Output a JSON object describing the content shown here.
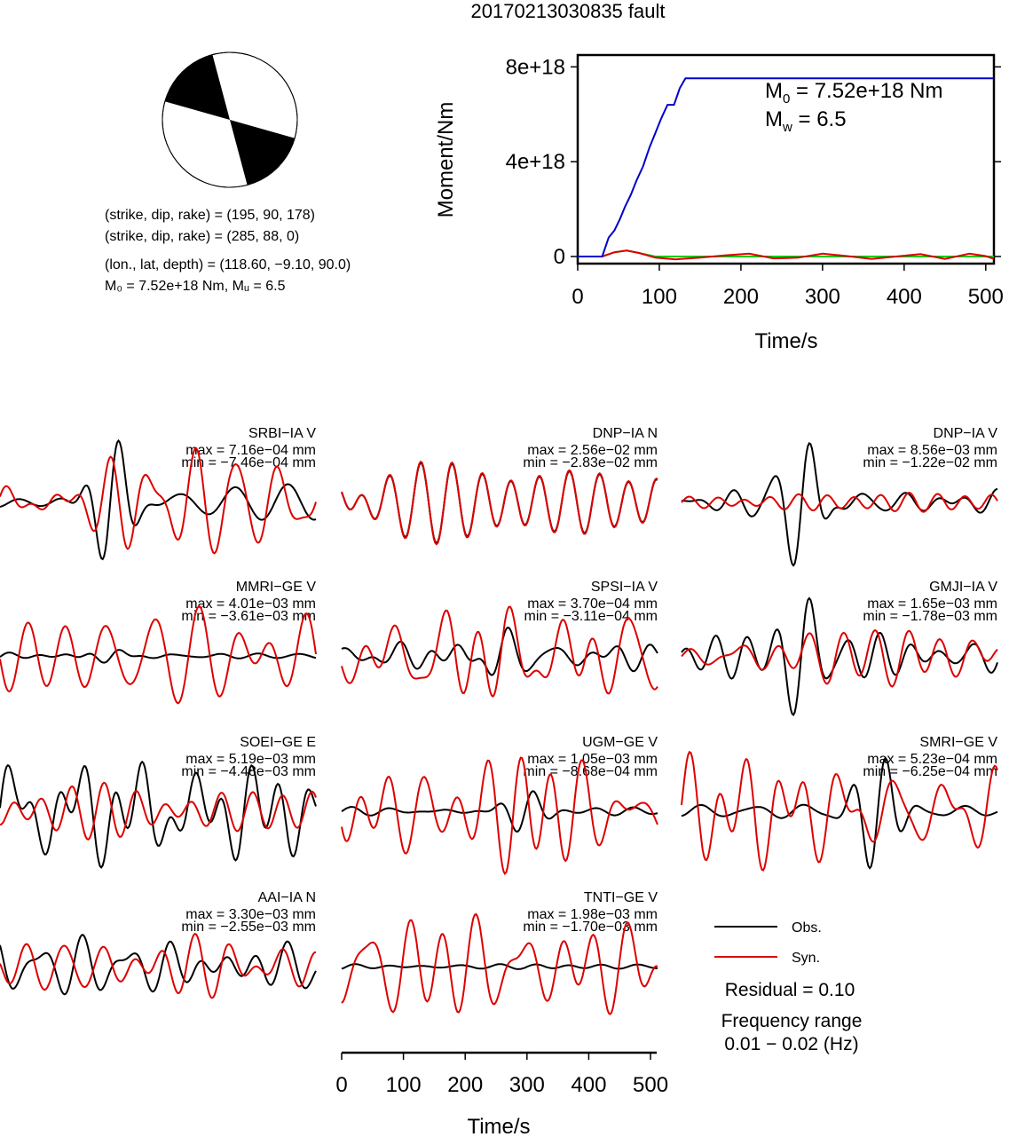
{
  "page": {
    "title": "20170213030835 fault"
  },
  "mechanism": {
    "lines": [
      "(strike, dip, rake) = (195, 90, 178)",
      "(strike, dip, rake) = (285, 88, 0)",
      "(lon., lat, depth) = (118.60, −9.10, 90.0)",
      "M₀ = 7.52e+18 Nm, Mᵤ = 6.5"
    ]
  },
  "colors": {
    "observed": "#000000",
    "synthetic": "#dd0000",
    "moment": "#0000cc",
    "aux_green": "#00cc00"
  },
  "chart_data": [
    {
      "type": "line",
      "name": "moment-rate-function",
      "ylabel": "Moment/Nm",
      "xlabel": "Time/s",
      "xlim": [
        0,
        510
      ],
      "ylim": [
        -3e+17,
        8.5e+18
      ],
      "x_ticks": [
        "0",
        "100",
        "200",
        "300",
        "400",
        "500"
      ],
      "y_ticks": [
        "0",
        "4e+18",
        "8e+18"
      ],
      "annotation_m0_prefix": "M",
      "annotation_m0_sub": "0",
      "annotation_m0_value": " = 7.52e+18 Nm",
      "annotation_mw_prefix": "M",
      "annotation_mw_sub": "w",
      "annotation_mw_value": " = 6.5",
      "series": [
        {
          "color": "blue",
          "x": [
            0,
            30,
            38,
            45,
            52,
            58,
            65,
            72,
            80,
            88,
            95,
            102,
            110,
            118,
            125,
            132,
            510
          ],
          "y": [
            0,
            0,
            8e+17,
            1.1e+18,
            1.6e+18,
            2.1e+18,
            2.6e+18,
            3.2e+18,
            3.8e+18,
            4.6e+18,
            5.2e+18,
            5.8e+18,
            6.4e+18,
            6.4e+18,
            7.1e+18,
            7.52e+18,
            7.52e+18
          ]
        },
        {
          "color": "green",
          "x": [
            0,
            30,
            45,
            60,
            75,
            95,
            130,
            510
          ],
          "y": [
            0,
            0,
            1.8e+17,
            2.5e+17,
            1.5e+17,
            0,
            0,
            0
          ]
        },
        {
          "color": "red",
          "x": [
            0,
            30,
            45,
            60,
            75,
            95,
            120,
            150,
            180,
            210,
            240,
            270,
            300,
            330,
            360,
            390,
            420,
            450,
            480,
            500,
            510
          ],
          "y": [
            0,
            0,
            1.8e+17,
            2.5e+17,
            1.5e+17,
            -5e+16,
            -1.2e+17,
            -5e+16,
            5e+16,
            1.2e+17,
            -8e+16,
            -5e+16,
            1.2e+17,
            2e+16,
            -1e+17,
            0.0,
            1e+17,
            -1e+17,
            1.2e+17,
            2e+16,
            -1e+17
          ]
        }
      ]
    },
    {
      "type": "line",
      "name": "waveform-comparison",
      "xlabel": "Time/s",
      "xlim": [
        0,
        510
      ],
      "x_ticks": [
        "0",
        "100",
        "200",
        "300",
        "400",
        "500"
      ],
      "legend": {
        "observed": "Obs.",
        "synthetic": "Syn.",
        "placement": "bottom-right"
      },
      "residual": "Residual = 0.10",
      "frequency_title": "Frequency range",
      "frequency_value": "0.01 − 0.02 (Hz)",
      "panels": [
        {
          "station": "SRBI−IA V",
          "max": "max = 7.16e−04 mm",
          "min": "min = −7.46e−04 mm",
          "obs": {
            "ampl": 0.25,
            "seed": 1.3,
            "burst": 0.35,
            "burstAmp": 0.85
          },
          "syn": {
            "ampl": 0.85,
            "seed": 2.1
          }
        },
        {
          "station": "DNP−IA N",
          "max": "max = 2.56e−02 mm",
          "min": "min = −2.83e−02 mm",
          "obs": {
            "ampl": 0.9,
            "seed": 3.0,
            "burst": -1,
            "burstAmp": 0
          },
          "syn": {
            "ampl": 0.9,
            "seed": 3.0,
            "same": true
          }
        },
        {
          "station": "DNP−IA V",
          "max": "max = 8.56e−03 mm",
          "min": "min = −1.22e−02 mm",
          "obs": {
            "ampl": 0.2,
            "seed": 4.4,
            "burst": 0.38,
            "burstAmp": 0.95
          },
          "syn": {
            "ampl": 0.22,
            "seed": 5.2
          }
        },
        {
          "station": "MMRI−GE V",
          "max": "max = 4.01e−03 mm",
          "min": "min = −3.61e−03 mm",
          "obs": {
            "ampl": 0.08,
            "seed": 6.1,
            "burst": 0.35,
            "burstAmp": 0.15
          },
          "syn": {
            "ampl": 0.9,
            "seed": 7.3
          }
        },
        {
          "station": "SPSI−IA V",
          "max": "max = 3.70e−04 mm",
          "min": "min = −3.11e−04 mm",
          "obs": {
            "ampl": 0.3,
            "seed": 8.2,
            "burst": 0.5,
            "burstAmp": 0.4
          },
          "syn": {
            "ampl": 0.85,
            "seed": 9.1
          }
        },
        {
          "station": "GMJI−IA V",
          "max": "max = 1.65e−03 mm",
          "min": "min = −1.78e−03 mm",
          "obs": {
            "ampl": 0.35,
            "seed": 10.4,
            "burst": 0.38,
            "burstAmp": 0.95
          },
          "syn": {
            "ampl": 0.5,
            "seed": 11.6
          }
        },
        {
          "station": "SOEI−GE E",
          "max": "max = 5.19e−03 mm",
          "min": "min = −4.48e−03 mm",
          "obs": {
            "ampl": 0.85,
            "seed": 12.2,
            "burst": -1,
            "burstAmp": 0
          },
          "syn": {
            "ampl": 0.6,
            "seed": 13.5
          }
        },
        {
          "station": "UGM−GE V",
          "max": "max = 1.05e−03 mm",
          "min": "min = −8.68e−04 mm",
          "obs": {
            "ampl": 0.06,
            "seed": 14.1,
            "burst": 0.58,
            "burstAmp": 0.3
          },
          "syn": {
            "ampl": 0.9,
            "seed": 15.7
          }
        },
        {
          "station": "SMRI−GE V",
          "max": "max = 5.23e−04 mm",
          "min": "min = −6.25e−04 mm",
          "obs": {
            "ampl": 0.1,
            "seed": 16.3,
            "burst": 0.62,
            "burstAmp": 0.9
          },
          "syn": {
            "ampl": 0.85,
            "seed": 17.8
          }
        },
        {
          "station": "AAI−IA N",
          "max": "max = 3.30e−03 mm",
          "min": "min = −2.55e−03 mm",
          "obs": {
            "ampl": 0.75,
            "seed": 18.4,
            "burst": -1,
            "burstAmp": 0
          },
          "syn": {
            "ampl": 0.55,
            "seed": 19.9
          }
        },
        {
          "station": "TNTI−GE V",
          "max": "max = 1.98e−03 mm",
          "min": "min = −1.70e−03 mm",
          "obs": {
            "ampl": 0.04,
            "seed": 20.5,
            "burst": -1,
            "burstAmp": 0
          },
          "syn": {
            "ampl": 0.9,
            "seed": 21.3
          }
        }
      ]
    }
  ]
}
